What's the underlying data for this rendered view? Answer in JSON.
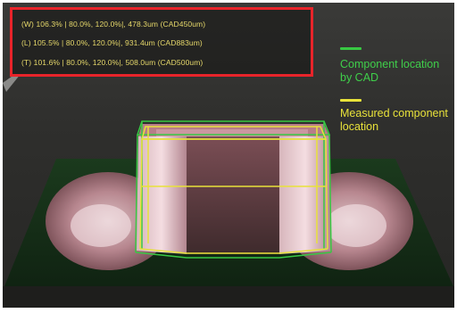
{
  "readout": {
    "lines": [
      {
        "axis": "(W)",
        "percent": "106.3%",
        "range": "| 80.0%, 120.0%|,",
        "measure": "478.3um",
        "cad": "(CAD450um)"
      },
      {
        "axis": "(L)",
        "percent": "105.5%",
        "range": "| 80.0%, 120.0%|,",
        "measure": "931.4um",
        "cad": "(CAD883um)"
      },
      {
        "axis": "(T)",
        "percent": "101.6%",
        "range": "| 80.0%, 120.0%|,",
        "measure": "508.0um",
        "cad": "(CAD500um)"
      }
    ]
  },
  "legend": {
    "cad_label": "Component location by CAD",
    "measured_label": "Measured component location"
  },
  "colors": {
    "cad": "#38c843",
    "measured": "#e8e23a",
    "highlight_border": "#e8242a",
    "readout_text": "#e6d86a"
  }
}
